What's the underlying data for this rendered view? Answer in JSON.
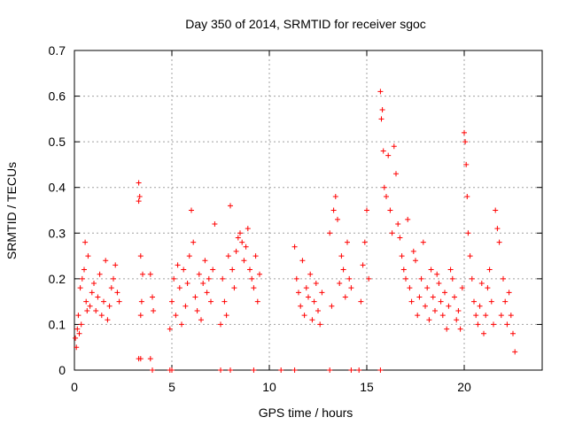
{
  "chart_data": {
    "type": "scatter",
    "title": "Day 350 of 2014, SRMTID for receiver sgoc",
    "xlabel": "GPS time / hours",
    "ylabel": "SRMTID / TECUs",
    "xlim": [
      0,
      24
    ],
    "ylim": [
      0,
      0.7
    ],
    "xticks": [
      0,
      5,
      10,
      15,
      20
    ],
    "yticks": [
      0,
      0.1,
      0.2,
      0.3,
      0.4,
      0.5,
      0.6,
      0.7
    ],
    "grid": true,
    "marker": "+",
    "series": [
      {
        "name": "SRMTID",
        "color": "#ff0000",
        "x": [
          0.05,
          0.1,
          0.15,
          0.2,
          0.25,
          0.3,
          0.35,
          0.4,
          0.5,
          0.55,
          0.6,
          0.65,
          0.7,
          0.8,
          0.9,
          1.0,
          1.1,
          1.2,
          1.3,
          1.4,
          1.5,
          1.6,
          1.7,
          1.8,
          1.9,
          2.0,
          2.1,
          2.2,
          2.3,
          3.3,
          3.35,
          3.4,
          3.45,
          3.5,
          3.3,
          3.4,
          3.9,
          4.0,
          4.05,
          4.9,
          5.0,
          5.1,
          5.2,
          5.3,
          5.4,
          5.5,
          5.6,
          5.7,
          5.8,
          5.9,
          6.0,
          6.1,
          6.2,
          6.3,
          6.4,
          6.5,
          6.6,
          6.7,
          6.8,
          6.9,
          7.0,
          7.1,
          7.2,
          7.5,
          7.6,
          7.7,
          7.8,
          7.9,
          8.0,
          8.1,
          8.2,
          8.3,
          8.4,
          8.5,
          8.6,
          8.7,
          8.8,
          8.9,
          9.0,
          9.1,
          9.2,
          9.3,
          9.4,
          9.5,
          11.3,
          11.4,
          11.5,
          11.6,
          11.7,
          11.8,
          11.9,
          12.0,
          12.1,
          12.2,
          12.3,
          12.4,
          12.5,
          12.6,
          12.7,
          13.1,
          13.2,
          13.3,
          13.4,
          13.5,
          13.6,
          13.7,
          13.8,
          13.9,
          14.0,
          14.1,
          14.2,
          14.7,
          14.8,
          14.9,
          15.0,
          15.1,
          15.7,
          15.75,
          15.8,
          15.85,
          15.9,
          16.0,
          16.1,
          16.2,
          16.3,
          16.4,
          16.5,
          16.6,
          16.7,
          16.8,
          16.9,
          17.0,
          17.1,
          17.2,
          17.3,
          17.4,
          17.5,
          17.6,
          17.7,
          17.8,
          17.9,
          18.0,
          18.1,
          18.2,
          18.3,
          18.4,
          18.5,
          18.6,
          18.7,
          18.8,
          18.9,
          19.0,
          19.1,
          19.2,
          19.3,
          19.4,
          19.5,
          19.6,
          19.7,
          19.8,
          19.9,
          20.0,
          20.05,
          20.1,
          20.15,
          20.2,
          20.3,
          20.4,
          20.5,
          20.6,
          20.7,
          20.8,
          20.9,
          21.0,
          21.1,
          21.2,
          21.3,
          21.4,
          21.5,
          21.6,
          21.7,
          21.8,
          21.9,
          22.0,
          22.1,
          22.2,
          22.3,
          22.4,
          22.5,
          22.6,
          3.3,
          3.4,
          3.9,
          4.0,
          4.9,
          5.0,
          7.5,
          8.0,
          9.2,
          10.6,
          11.3,
          13.1,
          14.2,
          14.6,
          15.7
        ],
        "y": [
          0.07,
          0.05,
          0.09,
          0.12,
          0.08,
          0.18,
          0.1,
          0.2,
          0.22,
          0.28,
          0.15,
          0.13,
          0.25,
          0.14,
          0.17,
          0.19,
          0.13,
          0.16,
          0.21,
          0.12,
          0.15,
          0.24,
          0.11,
          0.14,
          0.18,
          0.2,
          0.23,
          0.17,
          0.15,
          0.41,
          0.38,
          0.25,
          0.15,
          0.21,
          0.37,
          0.12,
          0.21,
          0.16,
          0.13,
          0.09,
          0.15,
          0.2,
          0.12,
          0.23,
          0.18,
          0.1,
          0.22,
          0.14,
          0.19,
          0.25,
          0.35,
          0.28,
          0.16,
          0.13,
          0.21,
          0.11,
          0.19,
          0.24,
          0.17,
          0.2,
          0.15,
          0.22,
          0.32,
          0.1,
          0.2,
          0.15,
          0.12,
          0.25,
          0.36,
          0.22,
          0.18,
          0.26,
          0.29,
          0.3,
          0.28,
          0.24,
          0.27,
          0.31,
          0.22,
          0.2,
          0.18,
          0.25,
          0.15,
          0.21,
          0.27,
          0.2,
          0.17,
          0.14,
          0.24,
          0.12,
          0.18,
          0.16,
          0.21,
          0.11,
          0.15,
          0.19,
          0.13,
          0.1,
          0.17,
          0.3,
          0.14,
          0.35,
          0.38,
          0.33,
          0.19,
          0.25,
          0.22,
          0.16,
          0.28,
          0.2,
          0.18,
          0.15,
          0.23,
          0.28,
          0.35,
          0.2,
          0.61,
          0.55,
          0.57,
          0.48,
          0.4,
          0.38,
          0.47,
          0.35,
          0.3,
          0.49,
          0.43,
          0.32,
          0.29,
          0.25,
          0.22,
          0.2,
          0.33,
          0.18,
          0.15,
          0.26,
          0.24,
          0.12,
          0.16,
          0.2,
          0.28,
          0.14,
          0.18,
          0.11,
          0.22,
          0.16,
          0.13,
          0.21,
          0.19,
          0.15,
          0.12,
          0.17,
          0.09,
          0.14,
          0.22,
          0.2,
          0.16,
          0.11,
          0.13,
          0.09,
          0.18,
          0.52,
          0.5,
          0.45,
          0.38,
          0.3,
          0.25,
          0.2,
          0.15,
          0.12,
          0.1,
          0.14,
          0.19,
          0.08,
          0.12,
          0.18,
          0.22,
          0.15,
          0.1,
          0.35,
          0.31,
          0.28,
          0.12,
          0.2,
          0.15,
          0.1,
          0.17,
          0.12,
          0.08,
          0.04,
          0.025,
          0.025,
          0.025,
          0,
          0,
          0,
          0,
          0,
          0,
          0,
          0,
          0,
          0,
          0,
          0
        ]
      }
    ]
  }
}
